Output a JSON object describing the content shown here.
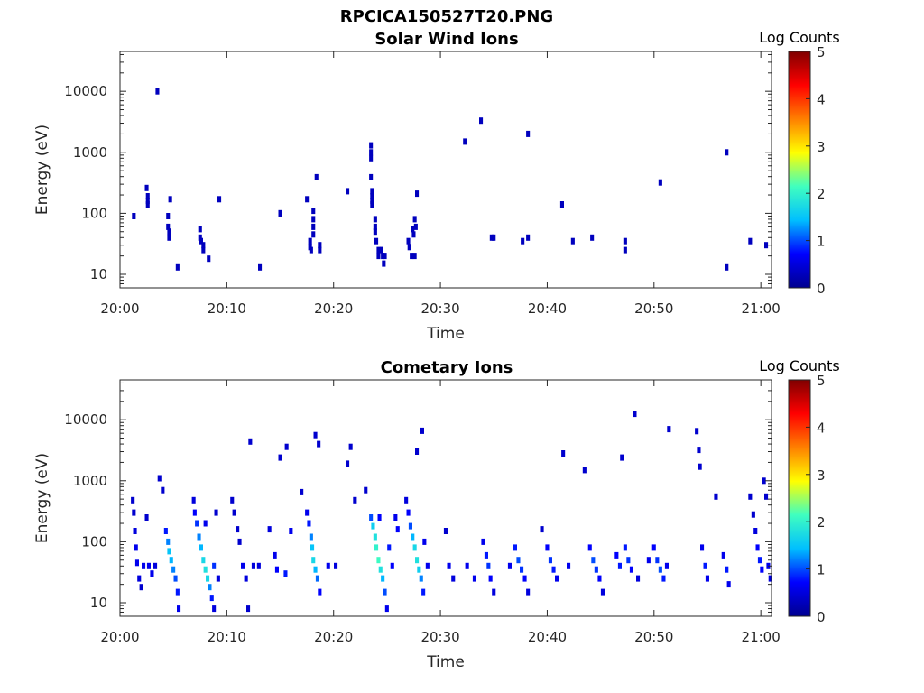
{
  "figure": {
    "title": "RPCICA150527T20.PNG"
  },
  "colorbar": {
    "label": "Log Counts",
    "ticks": [
      "0",
      "1",
      "2",
      "3",
      "4",
      "5"
    ],
    "colormap": [
      "#00008f",
      "#0000ff",
      "#00bfff",
      "#40ffbf",
      "#ffff00",
      "#ff8000",
      "#ff0000",
      "#800000"
    ]
  },
  "chart_data": [
    {
      "type": "heatmap",
      "title": "Solar Wind Ions",
      "xlabel": "Time",
      "ylabel": "Energy (eV)",
      "x_ticks": [
        "20:00",
        "20:10",
        "20:20",
        "20:30",
        "20:40",
        "20:50",
        "21:00"
      ],
      "x_range_min": [
        0,
        61
      ],
      "y_ticks": [
        "10",
        "100",
        "1000",
        "10000"
      ],
      "y_scale": "log",
      "y_range_ev": [
        6,
        45000
      ],
      "clim": [
        0,
        5
      ],
      "grid": false,
      "cells": [
        [
          1.3,
          90,
          0.3
        ],
        [
          2.5,
          260,
          0.3
        ],
        [
          2.6,
          190,
          0.3
        ],
        [
          2.6,
          160,
          0.3
        ],
        [
          2.6,
          140,
          0.3
        ],
        [
          3.5,
          10000,
          0.3
        ],
        [
          4.5,
          90,
          0.3
        ],
        [
          4.5,
          60,
          0.3
        ],
        [
          4.6,
          50,
          0.3
        ],
        [
          4.6,
          40,
          0.3
        ],
        [
          4.7,
          170,
          0.3
        ],
        [
          5.4,
          13,
          0.3
        ],
        [
          7.5,
          55,
          0.3
        ],
        [
          7.5,
          40,
          0.3
        ],
        [
          7.6,
          35,
          0.3
        ],
        [
          7.8,
          30,
          0.3
        ],
        [
          7.8,
          25,
          0.3
        ],
        [
          8.3,
          18,
          0.3
        ],
        [
          9.3,
          170,
          0.3
        ],
        [
          15.0,
          100,
          0.3
        ],
        [
          17.5,
          170,
          0.3
        ],
        [
          17.8,
          35,
          0.3
        ],
        [
          17.8,
          28,
          0.3
        ],
        [
          17.9,
          25,
          0.3
        ],
        [
          18.1,
          110,
          0.3
        ],
        [
          18.1,
          80,
          0.3
        ],
        [
          18.1,
          60,
          0.3
        ],
        [
          18.1,
          45,
          0.3
        ],
        [
          18.4,
          390,
          0.3
        ],
        [
          18.7,
          30,
          0.3
        ],
        [
          18.7,
          25,
          0.3
        ],
        [
          21.3,
          230,
          0.3
        ],
        [
          23.5,
          1300,
          0.3
        ],
        [
          23.5,
          1000,
          0.3
        ],
        [
          23.5,
          800,
          0.3
        ],
        [
          23.5,
          390,
          0.3
        ],
        [
          23.6,
          230,
          0.3
        ],
        [
          23.6,
          190,
          0.3
        ],
        [
          23.6,
          160,
          0.3
        ],
        [
          23.6,
          140,
          0.3
        ],
        [
          23.9,
          80,
          0.3
        ],
        [
          23.9,
          60,
          0.3
        ],
        [
          23.9,
          50,
          0.3
        ],
        [
          24.0,
          35,
          0.3
        ],
        [
          24.2,
          25,
          0.3
        ],
        [
          24.2,
          20,
          0.3
        ],
        [
          24.5,
          25,
          0.3
        ],
        [
          24.6,
          20,
          0.3
        ],
        [
          24.7,
          15,
          0.3
        ],
        [
          24.8,
          20,
          0.3
        ],
        [
          27.0,
          35,
          0.3
        ],
        [
          27.1,
          28,
          0.3
        ],
        [
          27.3,
          20,
          0.3
        ],
        [
          27.4,
          55,
          0.3
        ],
        [
          27.5,
          45,
          0.3
        ],
        [
          27.6,
          20,
          0.3
        ],
        [
          27.6,
          80,
          0.3
        ],
        [
          27.7,
          60,
          0.3
        ],
        [
          27.8,
          210,
          0.3
        ],
        [
          32.3,
          1500,
          0.3
        ],
        [
          33.8,
          3300,
          0.3
        ],
        [
          34.8,
          40,
          0.3
        ],
        [
          35.0,
          40,
          0.3
        ],
        [
          38.2,
          2000,
          0.3
        ],
        [
          38.2,
          40,
          0.3
        ],
        [
          37.7,
          35,
          0.3
        ],
        [
          41.4,
          140,
          0.3
        ],
        [
          42.4,
          35,
          0.3
        ],
        [
          44.2,
          40,
          0.3
        ],
        [
          47.3,
          35,
          0.3
        ],
        [
          47.3,
          25,
          0.3
        ],
        [
          50.6,
          320,
          0.3
        ],
        [
          56.8,
          1000,
          0.3
        ],
        [
          56.8,
          13,
          0.3
        ],
        [
          59.0,
          35,
          0.3
        ],
        [
          60.5,
          30,
          0.3
        ],
        [
          13.1,
          13,
          0.3
        ],
        [
          15.0,
          100,
          0.3
        ]
      ]
    },
    {
      "type": "heatmap",
      "title": "Cometary Ions",
      "xlabel": "Time",
      "ylabel": "Energy (eV)",
      "x_ticks": [
        "20:00",
        "20:10",
        "20:20",
        "20:30",
        "20:40",
        "20:50",
        "21:00"
      ],
      "x_range_min": [
        0,
        61
      ],
      "y_ticks": [
        "10",
        "100",
        "1000",
        "10000"
      ],
      "y_scale": "log",
      "y_range_ev": [
        6,
        45000
      ],
      "clim": [
        0,
        5
      ],
      "grid": false,
      "cells": [
        [
          1.2,
          480,
          0.4
        ],
        [
          1.3,
          300,
          0.4
        ],
        [
          1.4,
          150,
          0.5
        ],
        [
          1.5,
          80,
          0.6
        ],
        [
          1.6,
          45,
          0.6
        ],
        [
          1.8,
          25,
          0.5
        ],
        [
          2.0,
          18,
          0.4
        ],
        [
          2.2,
          40,
          0.6
        ],
        [
          2.5,
          250,
          0.4
        ],
        [
          2.7,
          40,
          0.6
        ],
        [
          3.0,
          30,
          0.6
        ],
        [
          3.3,
          40,
          0.5
        ],
        [
          3.7,
          1100,
          0.4
        ],
        [
          4.0,
          700,
          0.4
        ],
        [
          4.3,
          150,
          0.8
        ],
        [
          4.5,
          100,
          1.2
        ],
        [
          4.6,
          70,
          1.5
        ],
        [
          4.8,
          50,
          1.4
        ],
        [
          5.0,
          35,
          1.2
        ],
        [
          5.2,
          25,
          1.0
        ],
        [
          5.4,
          15,
          0.8
        ],
        [
          5.5,
          8,
          0.6
        ],
        [
          6.9,
          480,
          0.5
        ],
        [
          7.0,
          300,
          0.7
        ],
        [
          7.2,
          200,
          0.9
        ],
        [
          7.4,
          120,
          1.2
        ],
        [
          7.6,
          80,
          1.4
        ],
        [
          7.8,
          50,
          1.7
        ],
        [
          8.0,
          35,
          1.8
        ],
        [
          8.2,
          25,
          1.7
        ],
        [
          8.4,
          18,
          1.2
        ],
        [
          8.6,
          12,
          0.8
        ],
        [
          8.8,
          8,
          0.5
        ],
        [
          8.0,
          200,
          0.6
        ],
        [
          8.8,
          40,
          0.9
        ],
        [
          9.0,
          300,
          0.4
        ],
        [
          9.2,
          25,
          0.5
        ],
        [
          10.5,
          480,
          0.4
        ],
        [
          10.7,
          300,
          0.4
        ],
        [
          11.0,
          160,
          0.4
        ],
        [
          11.2,
          100,
          0.4
        ],
        [
          11.5,
          40,
          0.6
        ],
        [
          11.8,
          25,
          0.5
        ],
        [
          12.0,
          8,
          0.4
        ],
        [
          12.2,
          4400,
          0.4
        ],
        [
          12.5,
          40,
          0.5
        ],
        [
          13.0,
          40,
          0.5
        ],
        [
          14.0,
          160,
          0.5
        ],
        [
          14.5,
          60,
          0.6
        ],
        [
          14.7,
          35,
          0.7
        ],
        [
          15.0,
          2400,
          0.4
        ],
        [
          15.5,
          30,
          0.8
        ],
        [
          15.6,
          3600,
          0.4
        ],
        [
          16.0,
          150,
          0.6
        ],
        [
          17.0,
          650,
          0.4
        ],
        [
          17.5,
          300,
          0.6
        ],
        [
          17.7,
          200,
          0.8
        ],
        [
          17.9,
          120,
          1.2
        ],
        [
          18.0,
          80,
          1.5
        ],
        [
          18.1,
          50,
          1.7
        ],
        [
          18.3,
          35,
          1.4
        ],
        [
          18.5,
          25,
          1.1
        ],
        [
          18.7,
          15,
          0.7
        ],
        [
          18.3,
          5600,
          0.4
        ],
        [
          18.6,
          4000,
          0.4
        ],
        [
          19.5,
          40,
          0.6
        ],
        [
          20.2,
          40,
          0.5
        ],
        [
          21.3,
          1900,
          0.4
        ],
        [
          21.6,
          3600,
          0.4
        ],
        [
          22.0,
          480,
          0.4
        ],
        [
          23.0,
          700,
          0.4
        ],
        [
          23.5,
          250,
          1.0
        ],
        [
          23.7,
          180,
          1.6
        ],
        [
          23.9,
          120,
          1.8
        ],
        [
          24.0,
          80,
          2.0
        ],
        [
          24.2,
          50,
          2.1
        ],
        [
          24.4,
          35,
          1.8
        ],
        [
          24.6,
          25,
          1.4
        ],
        [
          24.8,
          15,
          1.0
        ],
        [
          25.0,
          8,
          0.6
        ],
        [
          24.3,
          250,
          0.7
        ],
        [
          25.2,
          80,
          0.8
        ],
        [
          25.5,
          40,
          0.7
        ],
        [
          25.8,
          250,
          0.6
        ],
        [
          26.0,
          160,
          0.7
        ],
        [
          26.8,
          480,
          0.5
        ],
        [
          27.0,
          300,
          0.7
        ],
        [
          27.2,
          180,
          1.0
        ],
        [
          27.4,
          120,
          1.4
        ],
        [
          27.6,
          80,
          1.7
        ],
        [
          27.8,
          50,
          1.8
        ],
        [
          28.0,
          35,
          1.6
        ],
        [
          28.2,
          25,
          1.2
        ],
        [
          28.4,
          15,
          0.8
        ],
        [
          27.8,
          3000,
          0.4
        ],
        [
          28.3,
          6600,
          0.4
        ],
        [
          28.5,
          100,
          0.6
        ],
        [
          28.8,
          40,
          0.6
        ],
        [
          30.5,
          150,
          0.4
        ],
        [
          30.8,
          40,
          0.6
        ],
        [
          31.2,
          25,
          0.5
        ],
        [
          32.5,
          40,
          0.6
        ],
        [
          33.2,
          25,
          0.6
        ],
        [
          34.0,
          100,
          0.6
        ],
        [
          34.3,
          60,
          0.8
        ],
        [
          34.5,
          40,
          0.9
        ],
        [
          34.7,
          25,
          0.7
        ],
        [
          35.0,
          15,
          0.5
        ],
        [
          36.5,
          40,
          0.6
        ],
        [
          37.0,
          80,
          0.8
        ],
        [
          37.3,
          50,
          1.0
        ],
        [
          37.6,
          35,
          0.9
        ],
        [
          37.9,
          25,
          0.7
        ],
        [
          38.2,
          15,
          0.5
        ],
        [
          39.5,
          160,
          0.4
        ],
        [
          40.0,
          80,
          0.7
        ],
        [
          40.3,
          50,
          0.9
        ],
        [
          40.6,
          35,
          0.8
        ],
        [
          40.9,
          25,
          0.6
        ],
        [
          41.5,
          2800,
          0.4
        ],
        [
          42.0,
          40,
          0.6
        ],
        [
          43.5,
          1500,
          0.4
        ],
        [
          44.0,
          80,
          0.7
        ],
        [
          44.3,
          50,
          1.0
        ],
        [
          44.6,
          35,
          0.9
        ],
        [
          44.9,
          25,
          0.7
        ],
        [
          45.2,
          15,
          0.5
        ],
        [
          46.5,
          60,
          0.7
        ],
        [
          46.8,
          40,
          0.8
        ],
        [
          47.0,
          2400,
          0.4
        ],
        [
          47.3,
          80,
          0.8
        ],
        [
          47.6,
          50,
          0.9
        ],
        [
          47.9,
          35,
          0.7
        ],
        [
          48.2,
          12500,
          0.4
        ],
        [
          48.5,
          25,
          0.5
        ],
        [
          49.5,
          50,
          0.6
        ],
        [
          50.0,
          80,
          0.7
        ],
        [
          50.3,
          50,
          0.9
        ],
        [
          50.6,
          35,
          1.0
        ],
        [
          50.9,
          25,
          0.8
        ],
        [
          51.4,
          7000,
          0.4
        ],
        [
          51.2,
          40,
          0.6
        ],
        [
          54.0,
          6500,
          0.4
        ],
        [
          54.2,
          3200,
          0.4
        ],
        [
          54.3,
          1700,
          0.4
        ],
        [
          54.5,
          80,
          0.6
        ],
        [
          54.8,
          40,
          0.8
        ],
        [
          55.0,
          25,
          0.6
        ],
        [
          55.8,
          550,
          0.4
        ],
        [
          56.5,
          60,
          0.6
        ],
        [
          56.8,
          35,
          0.8
        ],
        [
          57.0,
          20,
          0.6
        ],
        [
          59.0,
          550,
          0.4
        ],
        [
          59.3,
          280,
          0.4
        ],
        [
          59.5,
          150,
          0.5
        ],
        [
          59.7,
          80,
          0.7
        ],
        [
          59.9,
          50,
          0.8
        ],
        [
          60.1,
          35,
          0.7
        ],
        [
          60.3,
          1000,
          0.4
        ],
        [
          60.5,
          550,
          0.4
        ],
        [
          60.7,
          40,
          0.6
        ],
        [
          60.9,
          25,
          0.5
        ]
      ]
    }
  ]
}
